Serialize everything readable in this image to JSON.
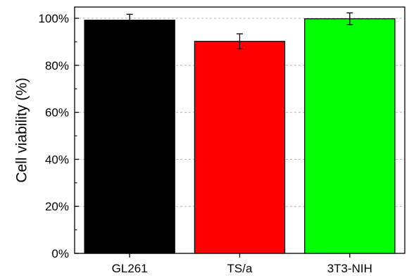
{
  "chart_data": {
    "type": "bar",
    "title": "",
    "xlabel": "",
    "ylabel": "Cell viability (%)",
    "ylim": [
      0,
      100
    ],
    "yticks": [
      0,
      20,
      40,
      60,
      80,
      100
    ],
    "ytick_labels": [
      "0%",
      "20%",
      "40%",
      "60%",
      "80%",
      "100%"
    ],
    "categories": [
      "GL261",
      "TS/a",
      "3T3-NIH"
    ],
    "values": [
      99.2,
      90.2,
      99.8
    ],
    "errors": [
      2.5,
      3.2,
      2.5
    ],
    "colors": [
      "#000000",
      "#ff0000",
      "#00ff00"
    ],
    "grid": "horizontal dashed at major ticks"
  }
}
